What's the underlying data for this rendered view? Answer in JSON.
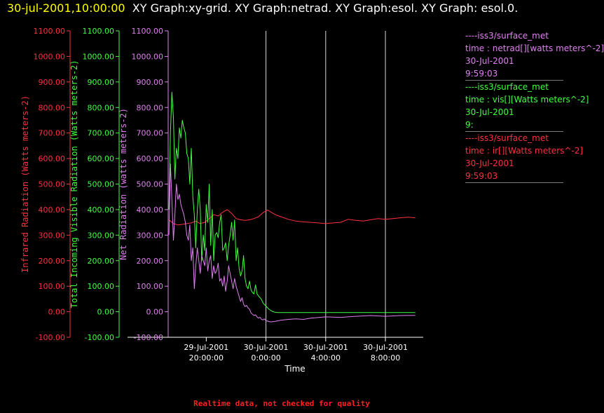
{
  "header": {
    "timestamp": "30-jul-2001,10:00:00",
    "title": "XY Graph:xy-grid.  XY Graph:netrad.  XY Graph:esol.  XY Graph: esol.0."
  },
  "legend": [
    {
      "source": "----iss3/surface_met",
      "desc": "time : netrad[][watts meters^-2]",
      "date": "30-Jul-2001",
      "time": "9:59:03",
      "color": "#e080f0"
    },
    {
      "source": "----iss3/surface_met",
      "desc": "time : vis[][Watts meters^-2]",
      "date": "30-Jul-2001",
      "time": "9:",
      "color": "#40ff40"
    },
    {
      "source": "----iss3/surface_met",
      "desc": "time : ir[][Watts meters^-2]",
      "date": "30-Jul-2001",
      "time": "9:59:03",
      "color": "#ff3040"
    }
  ],
  "footer": {
    "note": "Realtime data, not checked for quality"
  },
  "chart_data": {
    "type": "line",
    "xlabel": "Time",
    "x_ticks": [
      {
        "hours": 0,
        "date": "29-Jul-2001",
        "time": "20:00:00"
      },
      {
        "hours": 4,
        "date": "30-Jul-2001",
        "time": "0:00:00"
      },
      {
        "hours": 8,
        "date": "30-Jul-2001",
        "time": "4:00:00"
      },
      {
        "hours": 12,
        "date": "30-Jul-2001",
        "time": "8:00:00"
      }
    ],
    "xlim": [
      -2.55,
      14.25
    ],
    "y_axes": [
      {
        "label": "Infrared Radiation (Watts meters-2)",
        "color": "#ff3040",
        "ylim": [
          -100,
          1100
        ]
      },
      {
        "label": "Total Incoming Visible Radiation (Watts meters-2)",
        "color": "#40ff40",
        "ylim": [
          -100,
          1100
        ]
      },
      {
        "label": "Net Radiation (watts meters-2)",
        "color": "#e080f0",
        "ylim": [
          -100,
          1100
        ]
      }
    ],
    "y_ticks": [
      "-100.00",
      "0.00",
      "100.00",
      "200.00",
      "300.00",
      "400.00",
      "500.00",
      "600.00",
      "700.00",
      "800.00",
      "900.00",
      "1000.00",
      "1100.00"
    ],
    "grid": "vertical",
    "series": [
      {
        "name": "ir",
        "color": "#ff3040",
        "x": [
          -2.5,
          -2.2,
          -1.9,
          -1.6,
          -1.3,
          -1.0,
          -0.7,
          -0.4,
          -0.1,
          0.2,
          0.5,
          0.8,
          1.1,
          1.4,
          1.7,
          2.0,
          2.3,
          2.6,
          2.9,
          3.2,
          3.5,
          3.8,
          4.1,
          4.4,
          4.7,
          5.0,
          5.5,
          6.0,
          6.5,
          7.0,
          7.5,
          8.0,
          8.5,
          9.0,
          9.5,
          10.0,
          10.5,
          11.0,
          11.5,
          12.0,
          12.5,
          13.0,
          13.5,
          14.0
        ],
        "y": [
          360,
          345,
          340,
          342,
          345,
          348,
          355,
          345,
          350,
          365,
          380,
          375,
          390,
          400,
          385,
          365,
          360,
          358,
          360,
          365,
          372,
          388,
          398,
          388,
          378,
          372,
          362,
          355,
          352,
          350,
          348,
          345,
          348,
          350,
          362,
          358,
          355,
          360,
          365,
          362,
          365,
          368,
          370,
          368
        ]
      },
      {
        "name": "vis",
        "color": "#40ff40",
        "x": [
          -2.5,
          -2.4,
          -2.3,
          -2.2,
          -2.1,
          -2.0,
          -1.9,
          -1.8,
          -1.7,
          -1.6,
          -1.5,
          -1.4,
          -1.3,
          -1.2,
          -1.1,
          -1.0,
          -0.9,
          -0.8,
          -0.7,
          -0.6,
          -0.5,
          -0.4,
          -0.3,
          -0.2,
          -0.1,
          0.0,
          0.1,
          0.2,
          0.3,
          0.4,
          0.5,
          0.6,
          0.7,
          0.8,
          0.9,
          1.0,
          1.1,
          1.2,
          1.3,
          1.4,
          1.5,
          1.6,
          1.7,
          1.8,
          1.9,
          2.0,
          2.1,
          2.2,
          2.3,
          2.4,
          2.5,
          2.6,
          2.7,
          2.8,
          2.9,
          3.0,
          3.1,
          3.2,
          3.3,
          3.4,
          3.5,
          3.6,
          3.7,
          3.8,
          3.9,
          4.0,
          4.2,
          4.4,
          4.6,
          4.8,
          5.0,
          5.3,
          5.6,
          6.0,
          7.0,
          8.0,
          9.0,
          10.0,
          11.0,
          12.0,
          13.0,
          14.0
        ],
        "y": [
          400,
          700,
          860,
          760,
          520,
          640,
          600,
          720,
          680,
          750,
          720,
          700,
          620,
          600,
          500,
          640,
          450,
          380,
          250,
          400,
          480,
          400,
          200,
          300,
          240,
          420,
          350,
          500,
          260,
          400,
          200,
          300,
          310,
          290,
          350,
          380,
          240,
          250,
          270,
          200,
          260,
          300,
          350,
          280,
          360,
          200,
          250,
          170,
          140,
          160,
          220,
          130,
          100,
          90,
          120,
          85,
          75,
          70,
          105,
          70,
          62,
          55,
          48,
          35,
          28,
          22,
          10,
          2,
          -2,
          -3,
          -3,
          -3,
          -3,
          -3,
          -3,
          -3,
          -3,
          -3,
          -3,
          -3,
          -3,
          -3
        ]
      },
      {
        "name": "netrad",
        "color": "#e080f0",
        "x": [
          -2.5,
          -2.4,
          -2.3,
          -2.2,
          -2.1,
          -2.0,
          -1.9,
          -1.8,
          -1.7,
          -1.6,
          -1.5,
          -1.4,
          -1.3,
          -1.2,
          -1.1,
          -1.0,
          -0.9,
          -0.8,
          -0.7,
          -0.6,
          -0.5,
          -0.4,
          -0.3,
          -0.2,
          -0.1,
          0.0,
          0.1,
          0.2,
          0.3,
          0.4,
          0.5,
          0.6,
          0.7,
          0.8,
          0.9,
          1.0,
          1.1,
          1.2,
          1.3,
          1.4,
          1.5,
          1.6,
          1.7,
          1.8,
          1.9,
          2.0,
          2.1,
          2.2,
          2.3,
          2.4,
          2.5,
          2.6,
          2.7,
          2.8,
          2.9,
          3.0,
          3.1,
          3.2,
          3.3,
          3.4,
          3.5,
          3.6,
          3.7,
          3.8,
          3.9,
          4.0,
          4.3,
          4.6,
          5.0,
          5.5,
          6.0,
          6.5,
          7.0,
          8.0,
          9.0,
          10.0,
          11.0,
          12.0,
          13.0,
          14.0
        ],
        "y": [
          300,
          580,
          440,
          280,
          380,
          500,
          440,
          460,
          420,
          400,
          380,
          350,
          300,
          280,
          340,
          200,
          250,
          90,
          180,
          250,
          200,
          150,
          220,
          200,
          180,
          250,
          160,
          200,
          220,
          130,
          180,
          150,
          160,
          190,
          120,
          130,
          100,
          140,
          80,
          120,
          180,
          150,
          120,
          90,
          130,
          100,
          80,
          60,
          40,
          55,
          30,
          20,
          25,
          15,
          10,
          -5,
          -10,
          -15,
          -12,
          -20,
          -25,
          -22,
          -30,
          -32,
          -28,
          -35,
          -40,
          -38,
          -33,
          -30,
          -28,
          -30,
          -25,
          -20,
          -22,
          -18,
          -15,
          -18,
          -15,
          -14
        ]
      }
    ]
  }
}
